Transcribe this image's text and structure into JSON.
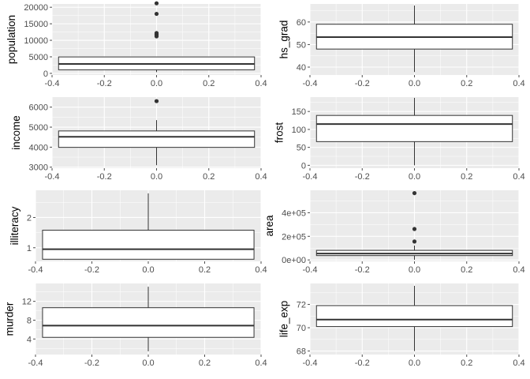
{
  "colors": {
    "panel": "#ebebeb",
    "grid_major": "#ffffff",
    "box_fill": "#ffffff",
    "box_line": "#333333",
    "tick_text": "#4d4d4d"
  },
  "chart_data": [
    {
      "type": "boxplot",
      "ylabel": "population",
      "xlim": [
        -0.4,
        0.4
      ],
      "ylim": [
        -500,
        21000
      ],
      "xticks": [
        {
          "v": -0.4,
          "label": "-0.4"
        },
        {
          "v": -0.2,
          "label": "-0.2"
        },
        {
          "v": 0.0,
          "label": "0.0"
        },
        {
          "v": 0.2,
          "label": "0.2"
        },
        {
          "v": 0.4,
          "label": "0.4"
        }
      ],
      "yticks": [
        {
          "v": 0,
          "label": "0"
        },
        {
          "v": 5000,
          "label": "5000"
        },
        {
          "v": 10000,
          "label": "10000"
        },
        {
          "v": 15000,
          "label": "15000"
        },
        {
          "v": 20000,
          "label": "20000"
        }
      ],
      "box": {
        "x_start": -0.375,
        "x_end": 0.375,
        "q1": 1080,
        "median": 2840,
        "q3": 4970,
        "whisker_low": 365,
        "whisker_high": 5000
      },
      "outliers": [
        21200,
        18000,
        12200,
        11900,
        11800,
        11400,
        11200
      ]
    },
    {
      "type": "boxplot",
      "ylabel": "hs_grad",
      "xlim": [
        -0.4,
        0.4
      ],
      "ylim": [
        36.5,
        68
      ],
      "xticks": [
        {
          "v": -0.4,
          "label": "-0.4"
        },
        {
          "v": -0.2,
          "label": "-0.2"
        },
        {
          "v": 0.0,
          "label": "0.0"
        },
        {
          "v": 0.2,
          "label": "0.2"
        },
        {
          "v": 0.4,
          "label": "0.4"
        }
      ],
      "yticks": [
        {
          "v": 40,
          "label": "40"
        },
        {
          "v": 50,
          "label": "50"
        },
        {
          "v": 60,
          "label": "60"
        }
      ],
      "box": {
        "x_start": -0.375,
        "x_end": 0.375,
        "q1": 48,
        "median": 53.3,
        "q3": 59,
        "whisker_low": 37.8,
        "whisker_high": 67.3
      },
      "outliers": []
    },
    {
      "type": "boxplot",
      "ylabel": "income",
      "xlim": [
        -0.4,
        0.4
      ],
      "ylim": [
        2950,
        6500
      ],
      "xticks": [
        {
          "v": -0.4,
          "label": "-0.4"
        },
        {
          "v": -0.2,
          "label": "-0.2"
        },
        {
          "v": 0.0,
          "label": "0.0"
        },
        {
          "v": 0.2,
          "label": "0.2"
        },
        {
          "v": 0.4,
          "label": "0.4"
        }
      ],
      "yticks": [
        {
          "v": 3000,
          "label": "3000"
        },
        {
          "v": 4000,
          "label": "4000"
        },
        {
          "v": 5000,
          "label": "5000"
        },
        {
          "v": 6000,
          "label": "6000"
        }
      ],
      "box": {
        "x_start": -0.375,
        "x_end": 0.375,
        "q1": 3990,
        "median": 4520,
        "q3": 4810,
        "whisker_low": 3100,
        "whisker_high": 5350
      },
      "outliers": [
        6300
      ]
    },
    {
      "type": "boxplot",
      "ylabel": "frost",
      "xlim": [
        -0.4,
        0.4
      ],
      "ylim": [
        -8,
        190
      ],
      "xticks": [
        {
          "v": -0.4,
          "label": "-0.4"
        },
        {
          "v": -0.2,
          "label": "-0.2"
        },
        {
          "v": 0.0,
          "label": "0.0"
        },
        {
          "v": 0.2,
          "label": "0.2"
        },
        {
          "v": 0.4,
          "label": "0.4"
        }
      ],
      "yticks": [
        {
          "v": 0,
          "label": "0"
        },
        {
          "v": 50,
          "label": "50"
        },
        {
          "v": 100,
          "label": "100"
        },
        {
          "v": 150,
          "label": "150"
        }
      ],
      "box": {
        "x_start": -0.375,
        "x_end": 0.375,
        "q1": 66,
        "median": 115,
        "q3": 139,
        "whisker_low": 0,
        "whisker_high": 188
      },
      "outliers": []
    },
    {
      "type": "boxplot",
      "ylabel": "illiteracy",
      "xlim": [
        -0.4,
        0.4
      ],
      "ylim": [
        0.55,
        2.9
      ],
      "xticks": [
        {
          "v": -0.4,
          "label": "-0.4"
        },
        {
          "v": -0.2,
          "label": "-0.2"
        },
        {
          "v": 0.0,
          "label": "0.0"
        },
        {
          "v": 0.2,
          "label": "0.2"
        },
        {
          "v": 0.4,
          "label": "0.4"
        }
      ],
      "yticks": [
        {
          "v": 1,
          "label": "1"
        },
        {
          "v": 2,
          "label": "2"
        }
      ],
      "box": {
        "x_start": -0.375,
        "x_end": 0.375,
        "q1": 0.62,
        "median": 0.95,
        "q3": 1.58,
        "whisker_low": 0.62,
        "whisker_high": 2.8
      },
      "outliers": []
    },
    {
      "type": "boxplot",
      "ylabel": "area",
      "xlim": [
        -0.4,
        0.4
      ],
      "ylim": [
        -12000,
        590000
      ],
      "xticks": [
        {
          "v": -0.4,
          "label": "-0.4"
        },
        {
          "v": -0.2,
          "label": "-0.2"
        },
        {
          "v": 0.0,
          "label": "0.0"
        },
        {
          "v": 0.2,
          "label": "0.2"
        },
        {
          "v": 0.4,
          "label": "0.4"
        }
      ],
      "yticks": [
        {
          "v": 0,
          "label": "0e+00"
        },
        {
          "v": 200000,
          "label": "2e+05"
        },
        {
          "v": 400000,
          "label": "4e+05"
        }
      ],
      "box": {
        "x_start": -0.375,
        "x_end": 0.375,
        "q1": 37000,
        "median": 54000,
        "q3": 81000,
        "whisker_low": 1000,
        "whisker_high": 122000
      },
      "outliers": [
        566000,
        262000,
        156000
      ]
    },
    {
      "type": "boxplot",
      "ylabel": "murder",
      "xlim": [
        -0.4,
        0.4
      ],
      "ylim": [
        0.7,
        15.8
      ],
      "xticks": [
        {
          "v": -0.4,
          "label": "-0.4"
        },
        {
          "v": -0.2,
          "label": "-0.2"
        },
        {
          "v": 0.0,
          "label": "0.0"
        },
        {
          "v": 0.2,
          "label": "0.2"
        },
        {
          "v": 0.4,
          "label": "0.4"
        }
      ],
      "yticks": [
        {
          "v": 4,
          "label": "4"
        },
        {
          "v": 8,
          "label": "8"
        },
        {
          "v": 12,
          "label": "12"
        }
      ],
      "box": {
        "x_start": -0.375,
        "x_end": 0.375,
        "q1": 4.35,
        "median": 6.85,
        "q3": 10.65,
        "whisker_low": 1.4,
        "whisker_high": 15.1
      },
      "outliers": []
    },
    {
      "type": "boxplot",
      "ylabel": "life_exp",
      "xlim": [
        -0.4,
        0.4
      ],
      "ylim": [
        67.7,
        73.8
      ],
      "xticks": [
        {
          "v": -0.4,
          "label": "-0.4"
        },
        {
          "v": -0.2,
          "label": "-0.2"
        },
        {
          "v": 0.0,
          "label": "0.0"
        },
        {
          "v": 0.2,
          "label": "0.2"
        },
        {
          "v": 0.4,
          "label": "0.4"
        }
      ],
      "yticks": [
        {
          "v": 68,
          "label": "68"
        },
        {
          "v": 70,
          "label": "70"
        },
        {
          "v": 72,
          "label": "72"
        }
      ],
      "box": {
        "x_start": -0.375,
        "x_end": 0.375,
        "q1": 70.1,
        "median": 70.7,
        "q3": 71.9,
        "whisker_low": 68,
        "whisker_high": 73.6
      },
      "outliers": []
    }
  ]
}
